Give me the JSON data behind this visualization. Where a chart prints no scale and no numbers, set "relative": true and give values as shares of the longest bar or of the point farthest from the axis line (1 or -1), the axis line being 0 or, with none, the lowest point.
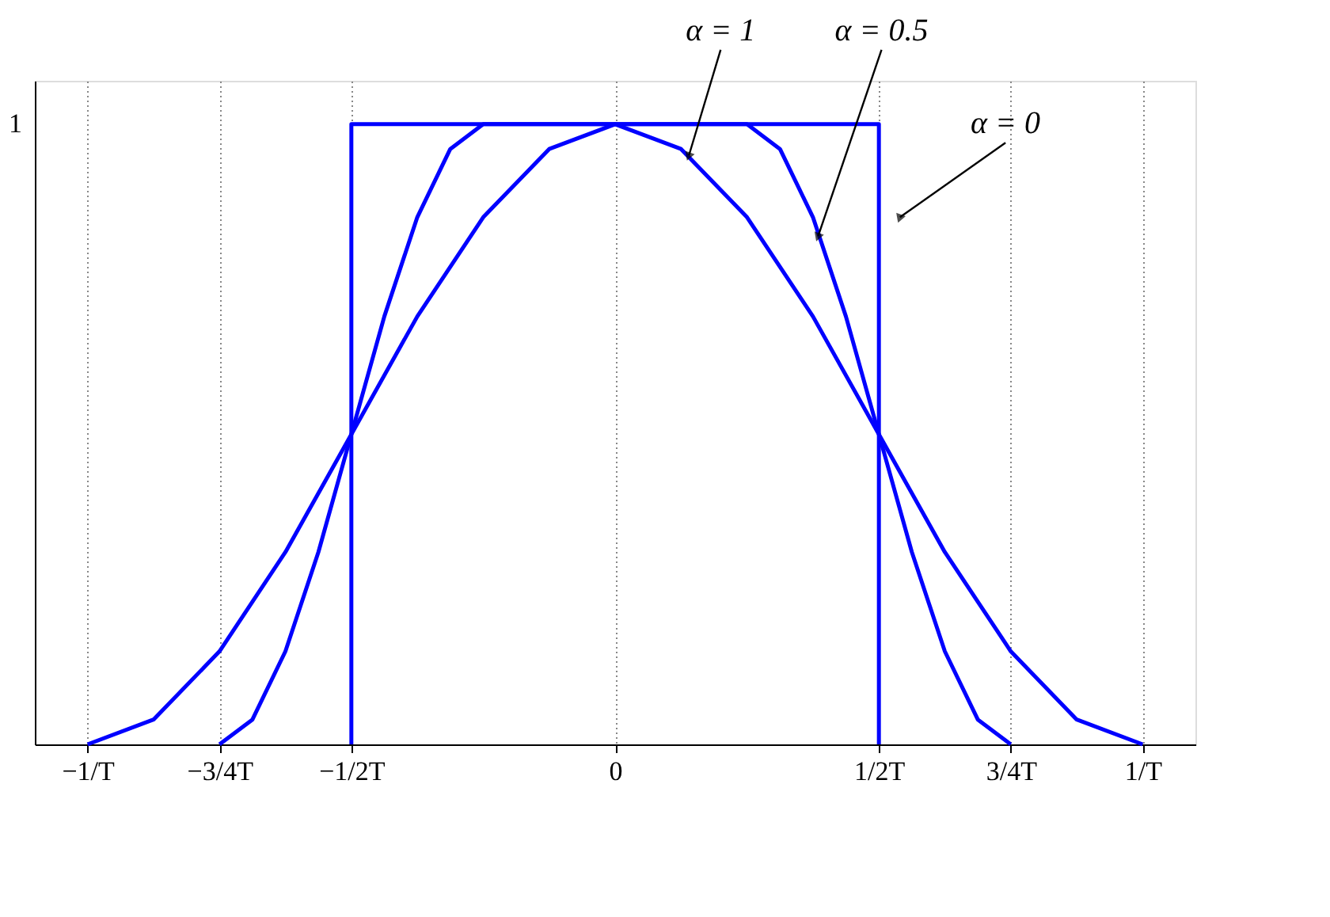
{
  "chart_data": {
    "type": "line",
    "xlim": [
      -1.1,
      1.1
    ],
    "relative": true,
    "xticks": [
      {
        "value": -1,
        "label": "−1/T"
      },
      {
        "value": -0.75,
        "label": "−3/4T"
      },
      {
        "value": -0.5,
        "label": "−1/2T"
      },
      0,
      {
        "value": 0.5,
        "label": "1/2T"
      },
      {
        "value": 0.75,
        "label": "3/4T"
      },
      {
        "value": 1,
        "label": "1/T"
      }
    ],
    "grid": "x",
    "marker": "none",
    "line_style": "solid",
    "series": [
      {
        "color": "#0000ff",
        "x": [
          -0.5,
          -0.5,
          0.5,
          0.5
        ],
        "values": [
          0,
          1,
          1,
          0
        ]
      },
      {
        "color": "#0000ff",
        "x": [
          -0.75,
          -0.6875,
          -0.625,
          -0.5625,
          -0.5,
          -0.4375,
          -0.375,
          -0.3125,
          -0.25,
          0,
          0.25,
          0.3125,
          0.375,
          0.4375,
          0.5,
          0.5625,
          0.625,
          0.6875,
          0.75
        ],
        "values": [
          0,
          0.04,
          0.15,
          0.31,
          0.5,
          0.69,
          0.85,
          0.96,
          1,
          1,
          1,
          0.96,
          0.85,
          0.69,
          0.5,
          0.31,
          0.15,
          0.04,
          0
        ]
      },
      {
        "color": "#0000ff",
        "x": [
          -1,
          -0.875,
          -0.75,
          -0.625,
          -0.5,
          -0.375,
          -0.25,
          -0.125,
          0,
          0.125,
          0.25,
          0.375,
          0.5,
          0.625,
          0.75,
          0.875,
          1
        ],
        "values": [
          0,
          0.04,
          0.15,
          0.31,
          0.5,
          0.69,
          0.85,
          0.96,
          1,
          0.96,
          0.85,
          0.69,
          0.5,
          0.31,
          0.15,
          0.04,
          0
        ]
      }
    ],
    "annotations": [
      "1",
      {
        "text": "α = 1",
        "x": 0.14,
        "y": 0.95
      },
      {
        "text": "α = 0.5",
        "x": 0.385,
        "y": 0.82
      },
      {
        "text": "α = 0",
        "x": 0.54,
        "y": 0.85
      }
    ]
  }
}
